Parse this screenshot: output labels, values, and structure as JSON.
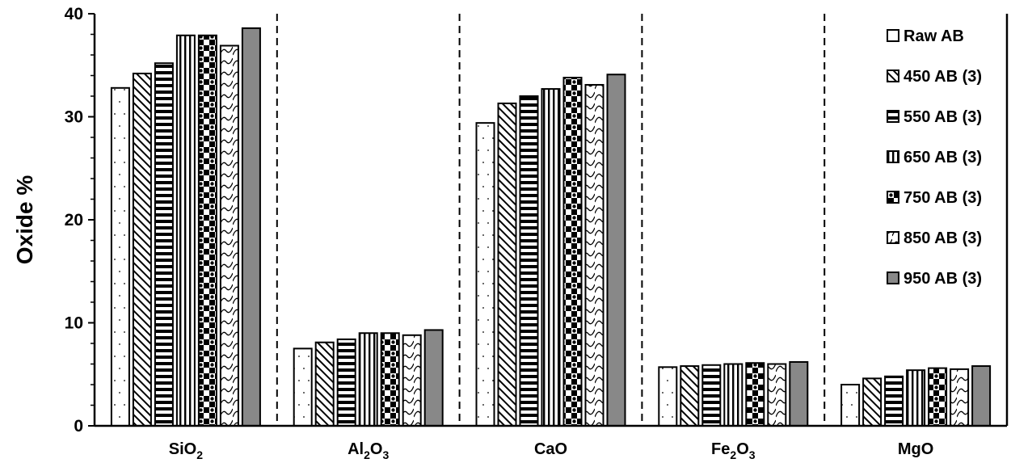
{
  "chart_data": {
    "type": "bar",
    "ylabel": "Oxide %",
    "xlabel": "",
    "ylim": [
      0,
      40
    ],
    "yticks": [
      0,
      10,
      20,
      30,
      40
    ],
    "grid": false,
    "legend_position": "top-right",
    "categories": [
      {
        "base": "SiO",
        "sub": "2",
        "tail": "",
        "sub2": ""
      },
      {
        "base": "Al",
        "sub": "2",
        "tail": "O",
        "sub2": "3"
      },
      {
        "base": "CaO",
        "sub": "",
        "tail": "",
        "sub2": ""
      },
      {
        "base": "Fe",
        "sub": "2",
        "tail": "O",
        "sub2": "3"
      },
      {
        "base": "MgO",
        "sub": "",
        "tail": "",
        "sub2": ""
      }
    ],
    "series": [
      {
        "name": "Raw AB",
        "pattern": "dots-sparse",
        "values": [
          32.8,
          7.5,
          29.4,
          5.7,
          4.0
        ]
      },
      {
        "name": "450 AB (3)",
        "pattern": "diagonal",
        "values": [
          34.2,
          8.1,
          31.3,
          5.8,
          4.6
        ]
      },
      {
        "name": "550 AB (3)",
        "pattern": "horizontal",
        "values": [
          35.2,
          8.4,
          32.0,
          5.9,
          4.8
        ]
      },
      {
        "name": "650 AB (3)",
        "pattern": "vertical",
        "values": [
          37.9,
          9.0,
          32.7,
          6.0,
          5.4
        ]
      },
      {
        "name": "750 AB (3)",
        "pattern": "checker",
        "values": [
          37.9,
          9.0,
          33.8,
          6.1,
          5.6
        ]
      },
      {
        "name": "850 AB (3)",
        "pattern": "wave",
        "values": [
          36.9,
          8.8,
          33.1,
          6.0,
          5.5
        ]
      },
      {
        "name": "950 AB (3)",
        "pattern": "solid-gray",
        "values": [
          38.6,
          9.3,
          34.1,
          6.2,
          5.8
        ]
      }
    ]
  },
  "colors": {
    "solid_fill": "#888888",
    "ink": "#000000"
  }
}
